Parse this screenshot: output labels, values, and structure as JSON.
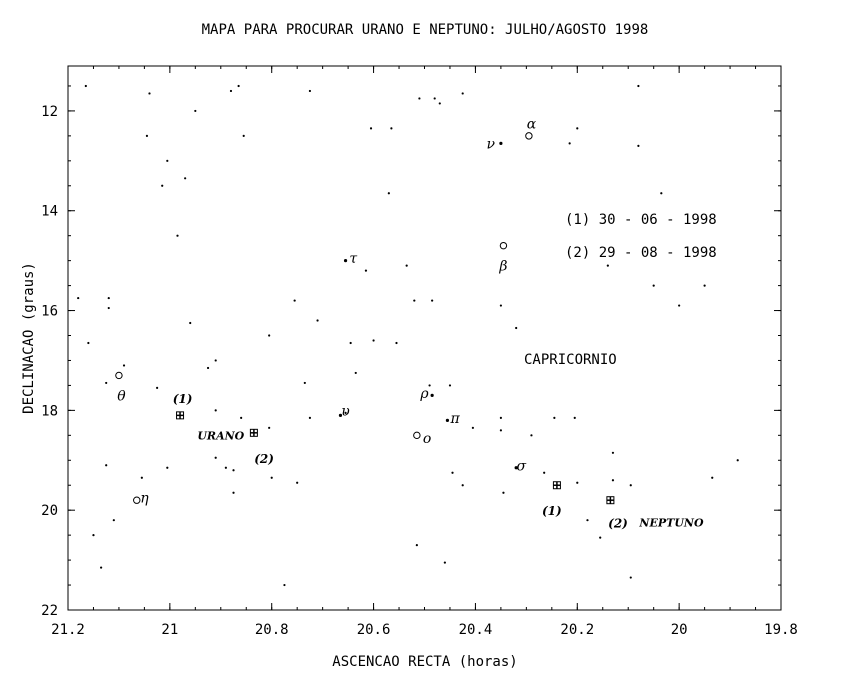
{
  "chart_data": {
    "type": "scatter",
    "title": "MAPA PARA PROCURAR URANO E NEPTUNO: JULHO/AGOSTO 1998",
    "xlabel": "ASCENCAO RECTA (horas)",
    "ylabel": "DECLINACAO (graus)",
    "xlim": [
      21.2,
      19.8
    ],
    "ylim": [
      22,
      11.1
    ],
    "y_inverted": true,
    "x_ticks": [
      "21.2",
      "21",
      "20.8",
      "20.6",
      "20.4",
      "20.2",
      "20",
      "19.8"
    ],
    "y_ticks": [
      "12",
      "14",
      "16",
      "18",
      "20",
      "22"
    ],
    "y_tick_values": [
      12,
      14,
      16,
      18,
      20,
      22
    ],
    "x_tick_values": [
      21.2,
      21.0,
      20.8,
      20.6,
      20.4,
      20.2,
      20.0,
      19.8
    ],
    "constellation": "CAPRICORNIO",
    "constellation_label_at": [
      20.27,
      16.9
    ],
    "legend": [
      "(1) 30 - 06 - 1998",
      "(2) 29 - 08 - 1998"
    ],
    "stars": [
      [
        21.165,
        11.5
      ],
      [
        21.04,
        11.65
      ],
      [
        20.88,
        11.6
      ],
      [
        20.865,
        11.5
      ],
      [
        20.725,
        11.6
      ],
      [
        20.51,
        11.75
      ],
      [
        20.48,
        11.75
      ],
      [
        20.47,
        11.85
      ],
      [
        20.425,
        11.65
      ],
      [
        20.08,
        11.5
      ],
      [
        21.045,
        12.5
      ],
      [
        20.95,
        12.0
      ],
      [
        20.605,
        12.35
      ],
      [
        20.565,
        12.35
      ],
      [
        20.2,
        12.35
      ],
      [
        20.215,
        12.65
      ],
      [
        20.08,
        12.7
      ],
      [
        21.005,
        13.0
      ],
      [
        20.97,
        13.35
      ],
      [
        21.015,
        13.5
      ],
      [
        20.855,
        12.5
      ],
      [
        20.57,
        13.65
      ],
      [
        20.035,
        13.65
      ],
      [
        20.985,
        14.5
      ],
      [
        20.535,
        15.1
      ],
      [
        20.615,
        15.2
      ],
      [
        20.14,
        15.1
      ],
      [
        21.18,
        15.75
      ],
      [
        21.12,
        15.75
      ],
      [
        21.12,
        15.95
      ],
      [
        20.755,
        15.8
      ],
      [
        20.52,
        15.8
      ],
      [
        20.485,
        15.8
      ],
      [
        20.35,
        15.9
      ],
      [
        20.05,
        15.5
      ],
      [
        20.0,
        15.9
      ],
      [
        19.95,
        15.5
      ],
      [
        21.16,
        16.65
      ],
      [
        20.96,
        16.25
      ],
      [
        20.71,
        16.2
      ],
      [
        20.645,
        16.65
      ],
      [
        20.6,
        16.6
      ],
      [
        20.555,
        16.65
      ],
      [
        20.32,
        16.35
      ],
      [
        20.805,
        16.5
      ],
      [
        21.125,
        17.45
      ],
      [
        21.09,
        17.1
      ],
      [
        20.925,
        17.15
      ],
      [
        20.91,
        17.0
      ],
      [
        20.735,
        17.45
      ],
      [
        20.635,
        17.25
      ],
      [
        21.025,
        17.55
      ],
      [
        20.49,
        17.5
      ],
      [
        20.45,
        17.5
      ],
      [
        20.91,
        18.0
      ],
      [
        20.725,
        18.15
      ],
      [
        20.655,
        18.05
      ],
      [
        20.35,
        18.15
      ],
      [
        20.35,
        18.4
      ],
      [
        20.29,
        18.5
      ],
      [
        20.245,
        18.15
      ],
      [
        20.205,
        18.15
      ],
      [
        20.405,
        18.35
      ],
      [
        20.86,
        18.15
      ],
      [
        20.805,
        18.35
      ],
      [
        21.125,
        19.1
      ],
      [
        21.055,
        19.35
      ],
      [
        21.005,
        19.15
      ],
      [
        20.91,
        18.95
      ],
      [
        20.89,
        19.15
      ],
      [
        20.875,
        19.2
      ],
      [
        20.8,
        19.35
      ],
      [
        20.75,
        19.45
      ],
      [
        20.875,
        19.65
      ],
      [
        20.445,
        19.25
      ],
      [
        20.425,
        19.5
      ],
      [
        20.345,
        19.65
      ],
      [
        20.265,
        19.25
      ],
      [
        20.2,
        19.45
      ],
      [
        20.13,
        19.4
      ],
      [
        20.13,
        18.85
      ],
      [
        20.095,
        19.5
      ],
      [
        19.885,
        19.0
      ],
      [
        19.935,
        19.35
      ],
      [
        21.11,
        20.2
      ],
      [
        21.15,
        20.5
      ],
      [
        20.18,
        20.2
      ],
      [
        20.155,
        20.55
      ],
      [
        20.515,
        20.7
      ],
      [
        20.46,
        21.05
      ],
      [
        20.095,
        21.35
      ],
      [
        20.775,
        21.5
      ],
      [
        21.135,
        21.15
      ]
    ],
    "named_stars": [
      {
        "name": "α",
        "x": 20.295,
        "y": 12.5,
        "sym": "circle",
        "lx": 20.29,
        "ly": 12.25
      },
      {
        "name": "ν",
        "x": 20.35,
        "y": 12.65,
        "sym": "dot",
        "lx": 20.37,
        "ly": 12.65
      },
      {
        "name": "β",
        "x": 20.345,
        "y": 14.7,
        "sym": "circle",
        "lx": 20.345,
        "ly": 15.1
      },
      {
        "name": "τ",
        "x": 20.655,
        "y": 15.0,
        "sym": "dot",
        "lx": 20.64,
        "ly": 14.95
      },
      {
        "name": "θ",
        "x": 21.1,
        "y": 17.3,
        "sym": "circle",
        "lx": 21.095,
        "ly": 17.7
      },
      {
        "name": "ρ",
        "x": 20.485,
        "y": 17.7,
        "sym": "dot",
        "lx": 20.5,
        "ly": 17.65
      },
      {
        "name": "υ",
        "x": 20.665,
        "y": 18.1,
        "sym": "dot",
        "lx": 20.655,
        "ly": 18.0
      },
      {
        "name": "π",
        "x": 20.455,
        "y": 18.2,
        "sym": "dot",
        "lx": 20.44,
        "ly": 18.15
      },
      {
        "name": "ο",
        "x": 20.515,
        "y": 18.5,
        "sym": "circle",
        "lx": 20.495,
        "ly": 18.55
      },
      {
        "name": "σ",
        "x": 20.32,
        "y": 19.15,
        "sym": "dot",
        "lx": 20.31,
        "ly": 19.1
      },
      {
        "name": "η",
        "x": 21.065,
        "y": 19.8,
        "sym": "circle",
        "lx": 21.05,
        "ly": 19.75
      }
    ],
    "planets": [
      {
        "name": "URANO",
        "lx": 20.9,
        "ly": 18.5,
        "positions": [
          {
            "label": "(1)",
            "x": 20.98,
            "y": 18.1,
            "lx": 20.975,
            "ly": 17.75
          },
          {
            "label": "(2)",
            "x": 20.835,
            "y": 18.45,
            "lx": 20.815,
            "ly": 18.95
          }
        ]
      },
      {
        "name": "NEPTUNO",
        "lx": 20.015,
        "ly": 20.25,
        "positions": [
          {
            "label": "(1)",
            "x": 20.24,
            "y": 19.5,
            "lx": 20.25,
            "ly": 20.0
          },
          {
            "label": "(2)",
            "x": 20.135,
            "y": 19.8,
            "lx": 20.12,
            "ly": 20.25
          }
        ]
      }
    ]
  }
}
